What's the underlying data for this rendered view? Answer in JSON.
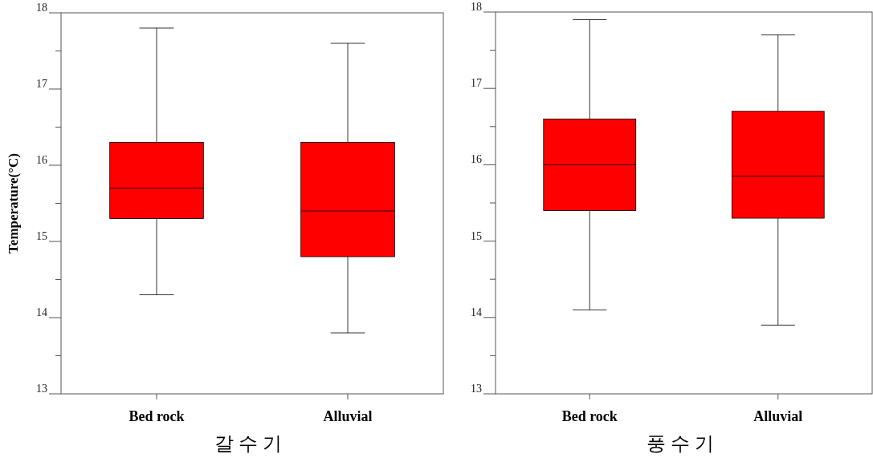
{
  "chart_data": [
    {
      "type": "box",
      "categories": [
        "Bed rock",
        "Alluvial"
      ],
      "xlabel": "갈 수 기",
      "ylabel": "Temperature(°C)",
      "ylim": [
        13,
        18
      ],
      "yticks": [
        13,
        {
          "value": 13.5,
          "label": null
        },
        14,
        {
          "value": 14.5,
          "label": null
        },
        15,
        {
          "value": 15.5,
          "label": null
        },
        16,
        {
          "value": 16.5,
          "label": null
        },
        17,
        {
          "value": 17.5,
          "label": null
        },
        18
      ],
      "grid": false,
      "series": [
        {
          "color": "#ff0000",
          "boxes": [
            {
              "low": 14.3,
              "q1": 15.3,
              "median": 15.7,
              "q3": 16.3,
              "high": 17.8
            },
            {
              "low": 13.8,
              "q1": 14.8,
              "median": 15.4,
              "q3": 16.3,
              "high": 17.6
            }
          ]
        }
      ]
    },
    {
      "type": "box",
      "categories": [
        "Bed rock",
        "Alluvial"
      ],
      "xlabel": "풍 수 기",
      "ylim": [
        13,
        18
      ],
      "yticks": [
        13,
        {
          "value": 13.5,
          "label": null
        },
        14,
        {
          "value": 14.5,
          "label": null
        },
        15,
        {
          "value": 15.5,
          "label": null
        },
        16,
        {
          "value": 16.5,
          "label": null
        },
        17,
        {
          "value": 17.5,
          "label": null
        },
        18
      ],
      "grid": false,
      "series": [
        {
          "color": "#ff0000",
          "boxes": [
            {
              "low": 14.1,
              "q1": 15.4,
              "median": 16.0,
              "q3": 16.6,
              "high": 17.9
            },
            {
              "low": 13.9,
              "q1": 15.3,
              "median": 15.85,
              "q3": 16.7,
              "high": 17.7
            }
          ]
        }
      ]
    }
  ]
}
